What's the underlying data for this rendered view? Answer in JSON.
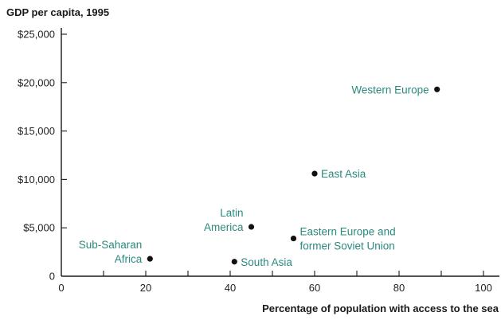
{
  "chart_data": {
    "type": "scatter",
    "title": "",
    "ylabel": "GDP per capita, 1995",
    "xlabel": "Percentage of population with access to the sea",
    "xlim": [
      0,
      104
    ],
    "ylim": [
      0,
      26000
    ],
    "x_ticks": [
      0,
      20,
      40,
      60,
      80,
      100
    ],
    "x_tick_labels": [
      "0",
      "20",
      "40",
      "60",
      "80",
      "100"
    ],
    "x_minor_ticks": [
      10,
      30,
      50,
      70,
      90
    ],
    "y_ticks": [
      0,
      5000,
      10000,
      15000,
      20000,
      25000
    ],
    "y_tick_labels": [
      "0",
      "$5,000",
      "$10,000",
      "$15,000",
      "$20,000",
      "$25,000"
    ],
    "grid": false,
    "legend": "none",
    "colors": {
      "point": "#111111",
      "label": "#2a8a7e",
      "axis": "#1a1a1a"
    },
    "points": [
      {
        "label": "Sub-Saharan Africa",
        "label_lines": [
          "Sub-Saharan",
          "Africa"
        ],
        "x": 21,
        "y": 1800,
        "label_side": "left"
      },
      {
        "label": "South Asia",
        "label_lines": [
          "South Asia"
        ],
        "x": 41,
        "y": 1500,
        "label_side": "right"
      },
      {
        "label": "Latin America",
        "label_lines": [
          "Latin",
          "America"
        ],
        "x": 45,
        "y": 5100,
        "label_side": "left"
      },
      {
        "label": "Eastern Europe and former Soviet Union",
        "label_lines": [
          "Eastern Europe and",
          "former Soviet Union"
        ],
        "x": 55,
        "y": 3900,
        "label_side": "right"
      },
      {
        "label": "East Asia",
        "label_lines": [
          "East Asia"
        ],
        "x": 60,
        "y": 10600,
        "label_side": "right"
      },
      {
        "label": "Western Europe",
        "label_lines": [
          "Western Europe"
        ],
        "x": 89,
        "y": 19300,
        "label_side": "left"
      }
    ]
  }
}
